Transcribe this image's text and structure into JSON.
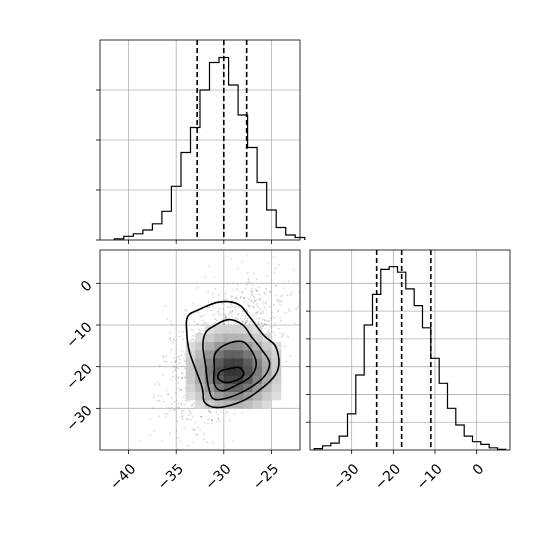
{
  "chart_data": [
    {
      "type": "histogram",
      "panel": "top-left",
      "x": [
        -41,
        -40,
        -39,
        -38,
        -37,
        -36,
        -35,
        -34,
        -33,
        -32,
        -31,
        -30,
        -29,
        -28,
        -27,
        -26,
        -25,
        -24,
        -23,
        -22
      ],
      "counts": [
        0.5,
        1.5,
        2.5,
        4,
        6.5,
        11.5,
        21.5,
        35,
        45,
        60,
        71,
        73,
        62,
        50,
        37,
        23,
        12,
        5,
        2,
        1
      ],
      "xlim": [
        -43,
        -22
      ],
      "ylim": [
        0,
        80
      ],
      "quantiles": [
        -32.8,
        -30.0,
        -27.6
      ],
      "xticks": [
        -40,
        -35,
        -30,
        -25
      ],
      "grid": true
    },
    {
      "type": "histogram",
      "panel": "bottom-right",
      "x": [
        -38,
        -36,
        -34,
        -32,
        -30,
        -28,
        -26,
        -24,
        -22,
        -20,
        -18,
        -16,
        -14,
        -12,
        -10,
        -8,
        -6,
        -4,
        -2,
        0,
        2,
        4,
        6
      ],
      "counts": [
        0.5,
        1.5,
        2.5,
        5,
        13,
        27,
        45,
        56,
        65,
        66,
        64,
        58,
        52,
        44,
        33,
        24,
        15,
        9,
        5,
        3,
        2,
        0.8,
        0.2
      ],
      "xlim": [
        -40,
        8
      ],
      "ylim": [
        0,
        72
      ],
      "quantiles": [
        -24.0,
        -18.0,
        -11.0
      ],
      "xticks": [
        -30,
        -20,
        -10,
        0
      ],
      "xtick_labels": [
        "−30",
        "−20",
        "−10",
        "0"
      ],
      "grid": true
    },
    {
      "type": "scatter-density",
      "panel": "bottom-left",
      "xlim": [
        -43,
        -22
      ],
      "ylim": [
        -40,
        8
      ],
      "xticks": [
        -40,
        -35,
        -30,
        -25
      ],
      "xtick_labels": [
        "−40",
        "−35",
        "−30",
        "−25"
      ],
      "yticks": [
        0,
        -10,
        -20,
        -30
      ],
      "ytick_labels": [
        "0",
        "−10",
        "−20",
        "−30"
      ],
      "grid": true,
      "density_center": [
        -29,
        -21
      ],
      "contours": [
        {
          "level": 1,
          "points": [
            [
              -32.8,
              -6.5
            ],
            [
              -30.5,
              -4.5
            ],
            [
              -28.5,
              -5
            ],
            [
              -27.3,
              -8
            ],
            [
              -25.8,
              -12.5
            ],
            [
              -24.6,
              -15
            ],
            [
              -24.2,
              -19
            ],
            [
              -24.6,
              -22
            ],
            [
              -26,
              -25.2
            ],
            [
              -28,
              -28.2
            ],
            [
              -30.5,
              -29.8
            ],
            [
              -32,
              -28.6
            ],
            [
              -32.3,
              -24.8
            ],
            [
              -33.6,
              -16.5
            ],
            [
              -33.9,
              -11.5
            ],
            [
              -33.8,
              -8
            ]
          ]
        },
        {
          "level": 2,
          "points": [
            [
              -31,
              -10.2
            ],
            [
              -29.5,
              -8.7
            ],
            [
              -28,
              -10
            ],
            [
              -27.1,
              -12.8
            ],
            [
              -26,
              -16
            ],
            [
              -25.2,
              -19
            ],
            [
              -25.7,
              -22.2
            ],
            [
              -27.2,
              -25
            ],
            [
              -29.2,
              -27.2
            ],
            [
              -31,
              -27.8
            ],
            [
              -31.6,
              -25
            ],
            [
              -31.9,
              -20
            ],
            [
              -32.2,
              -15
            ],
            [
              -31.9,
              -11.8
            ]
          ]
        },
        {
          "level": 3,
          "points": [
            [
              -29.6,
              -14.5
            ],
            [
              -28,
              -14
            ],
            [
              -27,
              -16.5
            ],
            [
              -26.6,
              -19.5
            ],
            [
              -27.2,
              -22.4
            ],
            [
              -28.8,
              -24.6
            ],
            [
              -30.2,
              -25.8
            ],
            [
              -31,
              -24.2
            ],
            [
              -31,
              -20.5
            ],
            [
              -30.9,
              -16.8
            ]
          ]
        },
        {
          "level": 4,
          "points": [
            [
              -29.6,
              -20.6
            ],
            [
              -28.4,
              -20.2
            ],
            [
              -27.9,
              -21.8
            ],
            [
              -28.6,
              -23.2
            ],
            [
              -29.8,
              -23.8
            ],
            [
              -30.6,
              -22.8
            ],
            [
              -30.4,
              -21.2
            ]
          ]
        }
      ]
    }
  ]
}
